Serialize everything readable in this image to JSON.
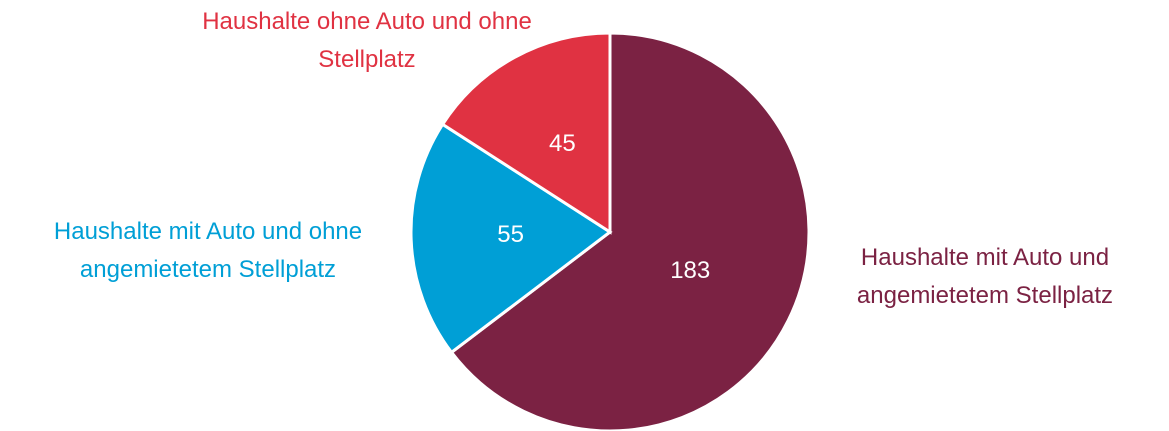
{
  "chart_data": {
    "type": "pie",
    "categories": [
      "Haushalte mit Auto und angemietetem Stellplatz",
      "Haushalte mit Auto und ohne angemietetem Stellplatz",
      "Haushalte ohne Auto und ohne Stellplatz"
    ],
    "values": [
      183,
      55,
      45
    ],
    "colors": [
      "#7b2243",
      "#009fd6",
      "#e03242"
    ]
  }
}
